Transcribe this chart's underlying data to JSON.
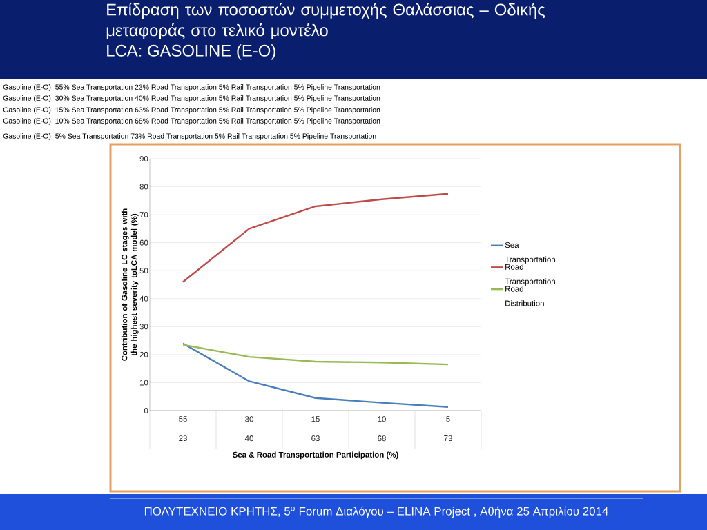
{
  "chart_data": {
    "type": "line",
    "title": "Επίδραση των ποσοστών συμμετοχής Θαλάσσιας – Οδικής μεταφοράς στο τελικό μοντέλο",
    "subtitle": "LCA: GASOLINE (E-O)",
    "xlabel": "Sea & Road Transportation  Participation (%)",
    "ylabel": "Contribution of Gasoline  LC stages with the highest severity toLCA model (%)",
    "categories": [
      "55 23",
      "30 40",
      "15 63",
      "10 68",
      "5 73"
    ],
    "series": [
      {
        "name": "Sea Transportation",
        "color": "#4a7ebb",
        "values": [
          24,
          10.5,
          4.5,
          2.8,
          1.3
        ]
      },
      {
        "name": "Road Transportation",
        "color": "#be4b48",
        "values": [
          46,
          65,
          73,
          75.5,
          77.5
        ]
      },
      {
        "name": "Road Distribution",
        "color": "#98b954",
        "values": [
          23.5,
          19.2,
          17.5,
          17.2,
          16.5
        ]
      }
    ],
    "ylim": [
      0,
      90
    ],
    "yticks": [
      0,
      10,
      20,
      30,
      40,
      50,
      60,
      70,
      80,
      90
    ],
    "grid": "y",
    "legend": "right",
    "marker": "none",
    "line_style": "solid",
    "annotations": [
      "Gasoline (E-O):  55% Sea Transportation   23% Road Transportation   5% Rail Transportation   5% Pipeline Transportation",
      "Gasoline (E-O):  30% Sea Transportation   40% Road Transportation   5% Rail Transportation   5% Pipeline Transportation",
      "Gasoline (E-O):  15% Sea Transportation   63% Road Transportation   5% Rail Transportation   5% Pipeline Transportation",
      "Gasoline (E-O):  10% Sea Transportation   68% Road Transportation   5% Rail Transportation   5% Pipeline Transportation",
      "Gasoline (E-O):  5% Sea Transportation   73% Road Transportation   5% Rail Transportation   5% Pipeline Transportation",
      "ΠΟΛΥΤΕΧΝΕΙΟ ΚΡΗΤΗΣ, 5$^{ο}$ Forum Διαλόγου – ELINA Project , Αθήνα 25 Απριλίου 2014"
    ]
  }
}
